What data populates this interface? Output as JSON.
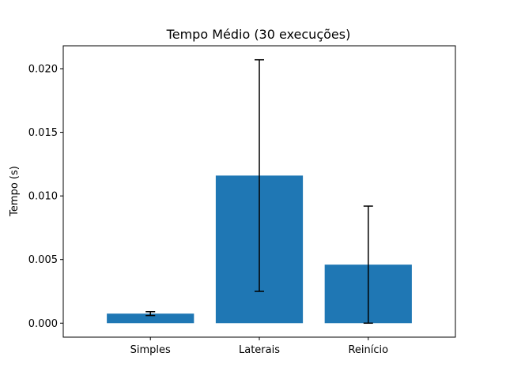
{
  "chart_data": {
    "type": "bar",
    "title": "Tempo Médio (30 execuções)",
    "xlabel": "",
    "ylabel": "Tempo (s)",
    "categories": [
      "Simples",
      "Laterais",
      "Reinício"
    ],
    "values": [
      0.00075,
      0.0116,
      0.0046
    ],
    "errors": [
      0.00015,
      0.0091,
      0.0046
    ],
    "ylim": [
      -0.0011,
      0.0218
    ],
    "yticks": [
      0.0,
      0.005,
      0.01,
      0.015,
      0.02
    ],
    "ytick_labels": [
      "0.000",
      "0.005",
      "0.010",
      "0.015",
      "0.020"
    ],
    "grid": false,
    "bar_color": "#1f77b4",
    "error_color": "#000000"
  }
}
